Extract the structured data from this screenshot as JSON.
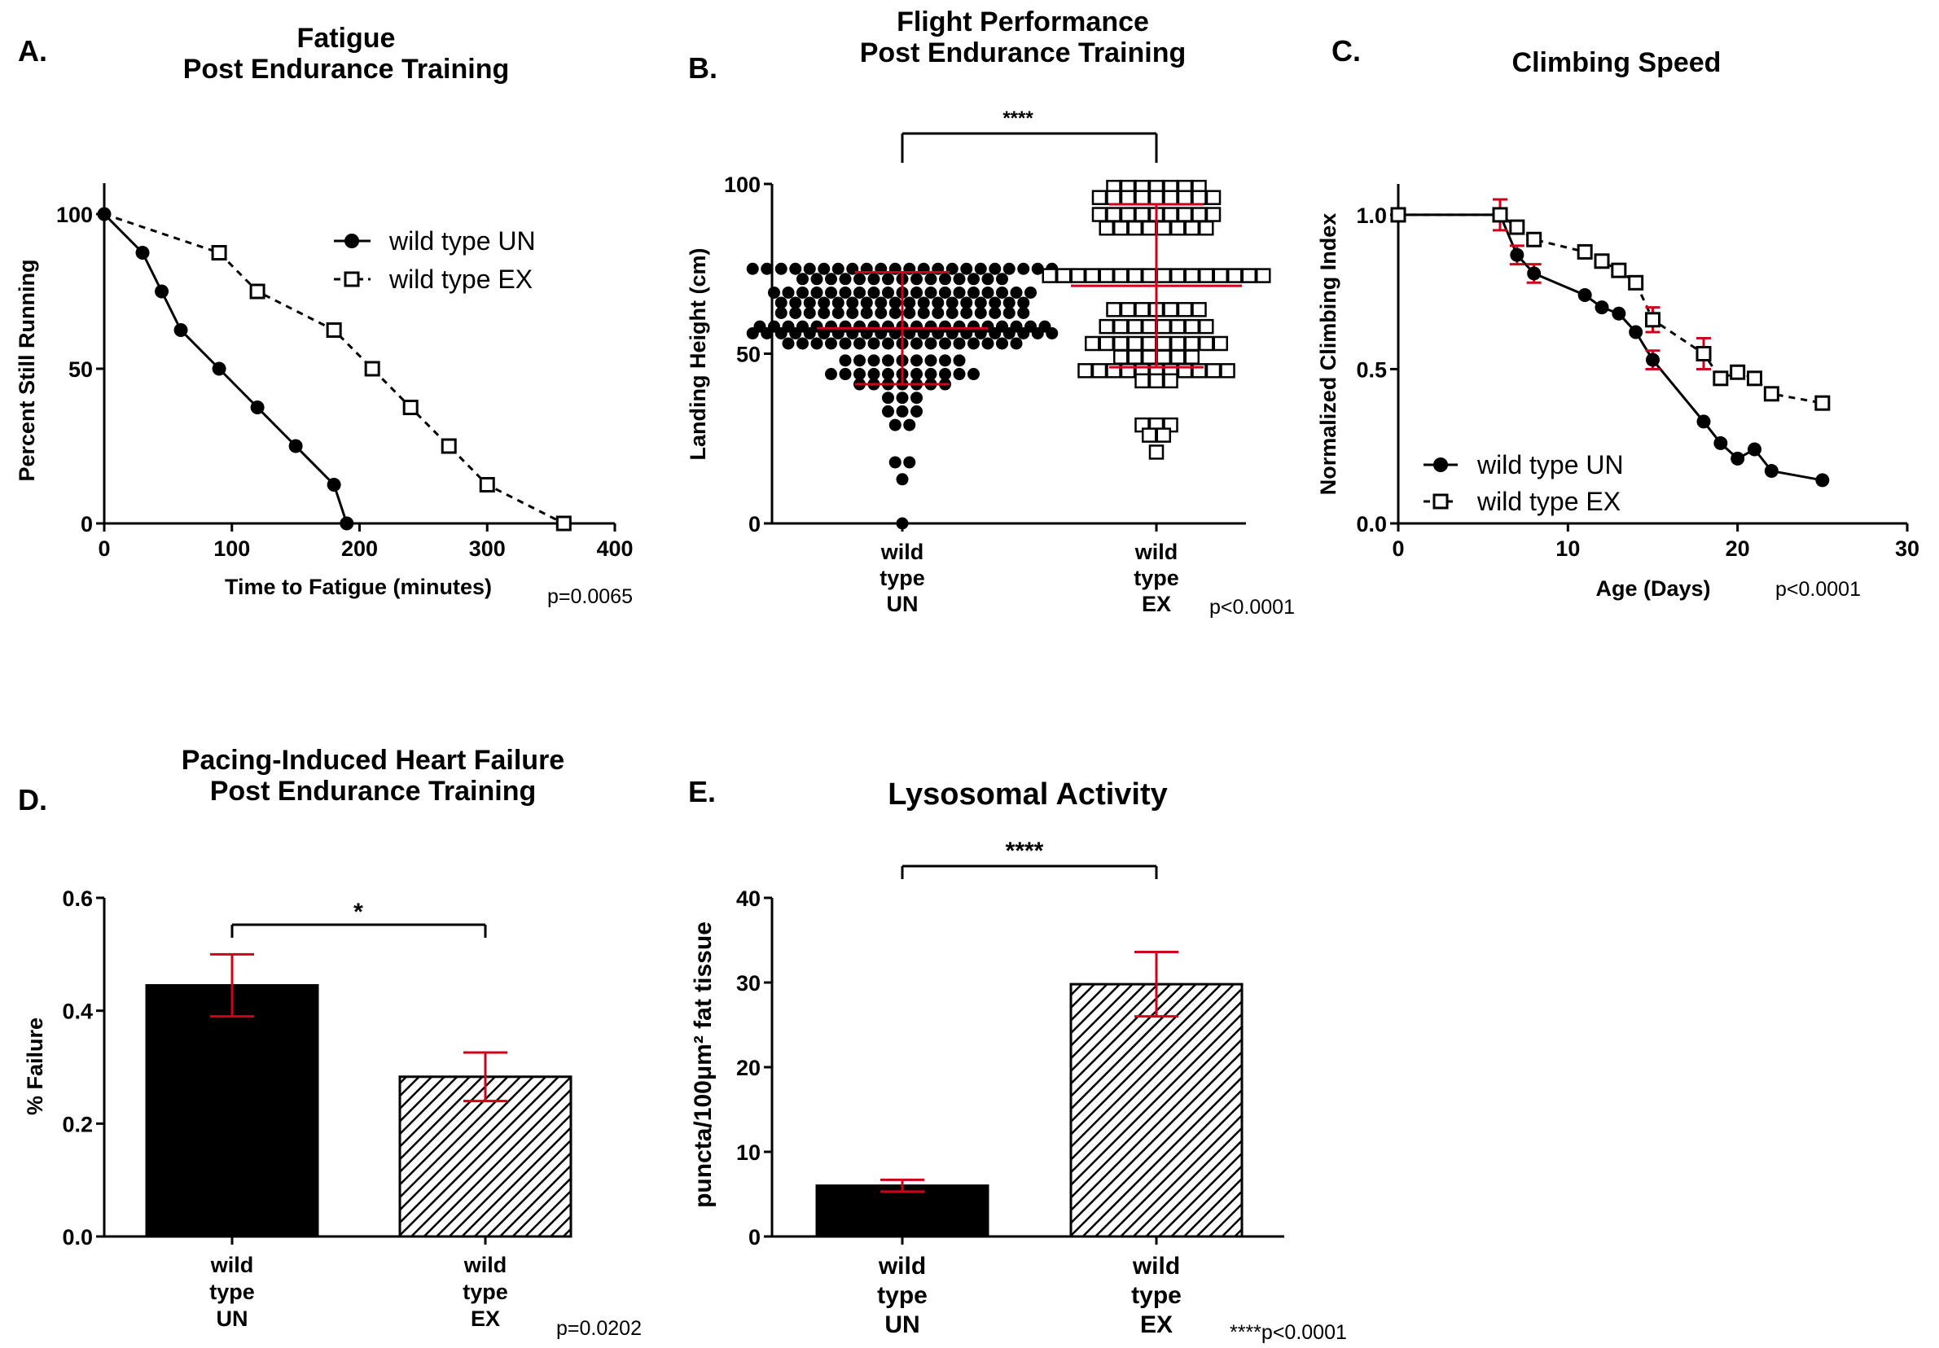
{
  "chart_data": [
    {
      "panel": "A.",
      "type": "line",
      "title": [
        "Fatigue",
        "Post Endurance Training"
      ],
      "xlabel": "Time to Fatigue (minutes)",
      "ylabel": "Percent Still Running",
      "xlim": [
        0,
        400
      ],
      "ylim": [
        0,
        100
      ],
      "xticks": [
        0,
        100,
        200,
        300,
        400
      ],
      "yticks": [
        0,
        50,
        100
      ],
      "legend_position": "top-right",
      "pvalue": "p=0.0065",
      "series": [
        {
          "name": "wild type UN",
          "line": "solid",
          "marker": "filled-circle",
          "color": "#000000",
          "x": [
            0,
            30,
            45,
            60,
            90,
            120,
            150,
            180,
            190
          ],
          "y": [
            100,
            87.5,
            75,
            62.5,
            50,
            37.5,
            25,
            12.5,
            0
          ]
        },
        {
          "name": "wild type EX",
          "line": "dashed",
          "marker": "open-square",
          "color": "#000000",
          "x": [
            0,
            90,
            120,
            180,
            210,
            240,
            270,
            300,
            360
          ],
          "y": [
            100,
            87.5,
            75,
            62.5,
            50,
            37.5,
            25,
            12.5,
            0
          ]
        }
      ]
    },
    {
      "panel": "B.",
      "type": "scatter",
      "title": [
        "Flight Performance",
        "Post Endurance Training"
      ],
      "ylabel": "Landing Height (cm)",
      "ylim": [
        0,
        100
      ],
      "yticks": [
        0,
        50,
        100
      ],
      "categories": [
        [
          "wild",
          "type",
          "UN"
        ],
        [
          "wild",
          "type",
          "EX"
        ]
      ],
      "significance": "****",
      "pvalue": "p<0.0001",
      "error_color": "#d0021b",
      "groups": [
        {
          "marker": "filled-circle",
          "mean": 57.5,
          "sd_low": 41,
          "sd_high": 74,
          "values": [
            75,
            75,
            75,
            75,
            75,
            75,
            75,
            75,
            75,
            75,
            75,
            75,
            75,
            75,
            75,
            75,
            75,
            75,
            75,
            75,
            75,
            75,
            72,
            72,
            72,
            72,
            72,
            72,
            72,
            72,
            72,
            72,
            72,
            72,
            72,
            72,
            72,
            68,
            68,
            68,
            68,
            68,
            68,
            68,
            68,
            68,
            68,
            68,
            68,
            68,
            68,
            68,
            68,
            68,
            68,
            68,
            65,
            65,
            65,
            65,
            65,
            65,
            65,
            65,
            65,
            65,
            65,
            65,
            65,
            65,
            65,
            65,
            65,
            65,
            62,
            62,
            62,
            62,
            62,
            62,
            62,
            62,
            62,
            62,
            62,
            62,
            62,
            62,
            62,
            62,
            62,
            62,
            58,
            58,
            58,
            58,
            58,
            58,
            58,
            58,
            58,
            58,
            58,
            58,
            58,
            58,
            58,
            58,
            58,
            58,
            58,
            58,
            58,
            56,
            56,
            56,
            56,
            56,
            56,
            56,
            56,
            56,
            56,
            56,
            56,
            56,
            56,
            56,
            56,
            56,
            56,
            56,
            56,
            56,
            56,
            53,
            53,
            53,
            53,
            53,
            53,
            53,
            53,
            53,
            53,
            53,
            53,
            53,
            53,
            53,
            53,
            53,
            48,
            48,
            48,
            48,
            48,
            48,
            48,
            48,
            48,
            44,
            44,
            44,
            44,
            44,
            44,
            44,
            44,
            44,
            44,
            44,
            41,
            41,
            41,
            41,
            41,
            41,
            41,
            37,
            37,
            37,
            33,
            33,
            33,
            29,
            29,
            18,
            18,
            13,
            0
          ]
        },
        {
          "marker": "open-square",
          "mean": 70,
          "sd_low": 46,
          "sd_high": 94,
          "values": [
            99,
            99,
            99,
            99,
            99,
            99,
            99,
            96,
            96,
            96,
            96,
            96,
            96,
            96,
            96,
            96,
            91,
            91,
            91,
            91,
            91,
            91,
            91,
            91,
            91,
            87,
            87,
            87,
            87,
            87,
            87,
            87,
            87,
            73,
            73,
            73,
            73,
            73,
            73,
            73,
            73,
            73,
            73,
            73,
            73,
            73,
            73,
            73,
            73,
            63,
            63,
            63,
            63,
            63,
            63,
            63,
            58,
            58,
            58,
            58,
            58,
            58,
            58,
            58,
            53,
            53,
            53,
            53,
            53,
            53,
            53,
            53,
            53,
            53,
            49,
            49,
            49,
            49,
            49,
            49,
            45,
            45,
            45,
            45,
            45,
            45,
            45,
            45,
            45,
            45,
            45,
            42,
            42,
            42,
            29,
            29,
            29,
            26,
            26,
            21
          ]
        }
      ]
    },
    {
      "panel": "C.",
      "type": "line",
      "title": [
        "Climbing Speed"
      ],
      "xlabel": "Age (Days)",
      "ylabel": "Normalized Climbing Index",
      "xlim": [
        0,
        30
      ],
      "ylim": [
        0,
        1.1
      ],
      "xticks": [
        0,
        10,
        20,
        30
      ],
      "yticks": [
        "0.0",
        "0.5",
        "1.0"
      ],
      "legend_position": "bottom-left",
      "pvalue": "p<0.0001",
      "error_color": "#d0021b",
      "series": [
        {
          "name": "wild type UN",
          "line": "solid",
          "marker": "filled-circle",
          "color": "#000000",
          "x": [
            0,
            6,
            7,
            8,
            11,
            12,
            13,
            14,
            15,
            18,
            19,
            20,
            21,
            22,
            25
          ],
          "y": [
            1.0,
            1.0,
            0.87,
            0.81,
            0.74,
            0.7,
            0.68,
            0.62,
            0.53,
            0.33,
            0.26,
            0.21,
            0.24,
            0.17,
            0.14
          ],
          "err": [
            0,
            0.02,
            0.03,
            0.03,
            0,
            0,
            0,
            0,
            0.03,
            0,
            0,
            0,
            0,
            0,
            0
          ]
        },
        {
          "name": "wild type EX",
          "line": "dashed",
          "marker": "open-square",
          "color": "#000000",
          "x": [
            0,
            6,
            7,
            8,
            11,
            12,
            13,
            14,
            15,
            18,
            19,
            20,
            21,
            22,
            25
          ],
          "y": [
            1.0,
            1.0,
            0.96,
            0.92,
            0.88,
            0.85,
            0.82,
            0.78,
            0.66,
            0.55,
            0.47,
            0.49,
            0.47,
            0.42,
            0.39
          ],
          "err": [
            0,
            0.05,
            0,
            0.02,
            0,
            0,
            0.02,
            0,
            0.04,
            0.05,
            0,
            0,
            0,
            0,
            0
          ]
        }
      ]
    },
    {
      "panel": "D.",
      "type": "bar",
      "title": [
        "Pacing-Induced Heart Failure",
        "Post Endurance Training"
      ],
      "ylabel": "% Failure",
      "ylim": [
        0,
        0.6
      ],
      "yticks": [
        "0.0",
        "0.2",
        "0.4",
        "0.6"
      ],
      "categories": [
        [
          "wild",
          "type",
          "UN"
        ],
        [
          "wild",
          "type",
          "EX"
        ]
      ],
      "values": [
        0.445,
        0.283
      ],
      "errors": [
        0.055,
        0.043
      ],
      "fills": [
        "solid-black",
        "hatched"
      ],
      "significance": "*",
      "pvalue": "p=0.0202",
      "error_color": "#d0021b"
    },
    {
      "panel": "E.",
      "type": "bar",
      "title": [
        "Lysosomal Activity"
      ],
      "ylabel": "puncta/100μm² fat tissue",
      "ylim": [
        0,
        40
      ],
      "yticks": [
        "0",
        "10",
        "20",
        "30",
        "40"
      ],
      "categories": [
        [
          "wild",
          "type",
          "UN"
        ],
        [
          "wild",
          "type",
          "EX"
        ]
      ],
      "values": [
        6.0,
        29.8
      ],
      "errors": [
        0.7,
        3.8
      ],
      "fills": [
        "solid-black",
        "hatched"
      ],
      "significance": "****",
      "pvalue": "****p<0.0001",
      "error_color": "#d0021b"
    }
  ]
}
